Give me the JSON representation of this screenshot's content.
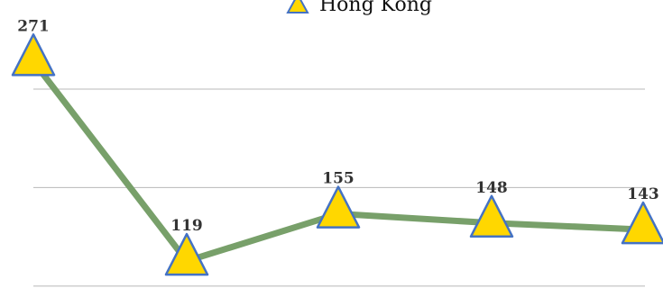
{
  "chart_data": {
    "type": "line",
    "title": "",
    "xlabel": "",
    "ylabel": "",
    "categories": [
      "",
      "",
      "",
      "",
      ""
    ],
    "series": [
      {
        "name": "Hong Kong",
        "values": [
          271,
          119,
          155,
          148,
          143
        ],
        "line_color": "#78a06a",
        "marker": "triangle",
        "marker_fill": "#ffd700",
        "marker_stroke": "#4472c4"
      }
    ],
    "data_labels": [
      "271",
      "119",
      "155",
      "148",
      "143"
    ],
    "legend": {
      "position": "top",
      "label": "Hong Kong"
    },
    "grid": true,
    "ylim": [
      80,
      300
    ],
    "gridline_values": [
      100,
      175,
      250
    ]
  }
}
